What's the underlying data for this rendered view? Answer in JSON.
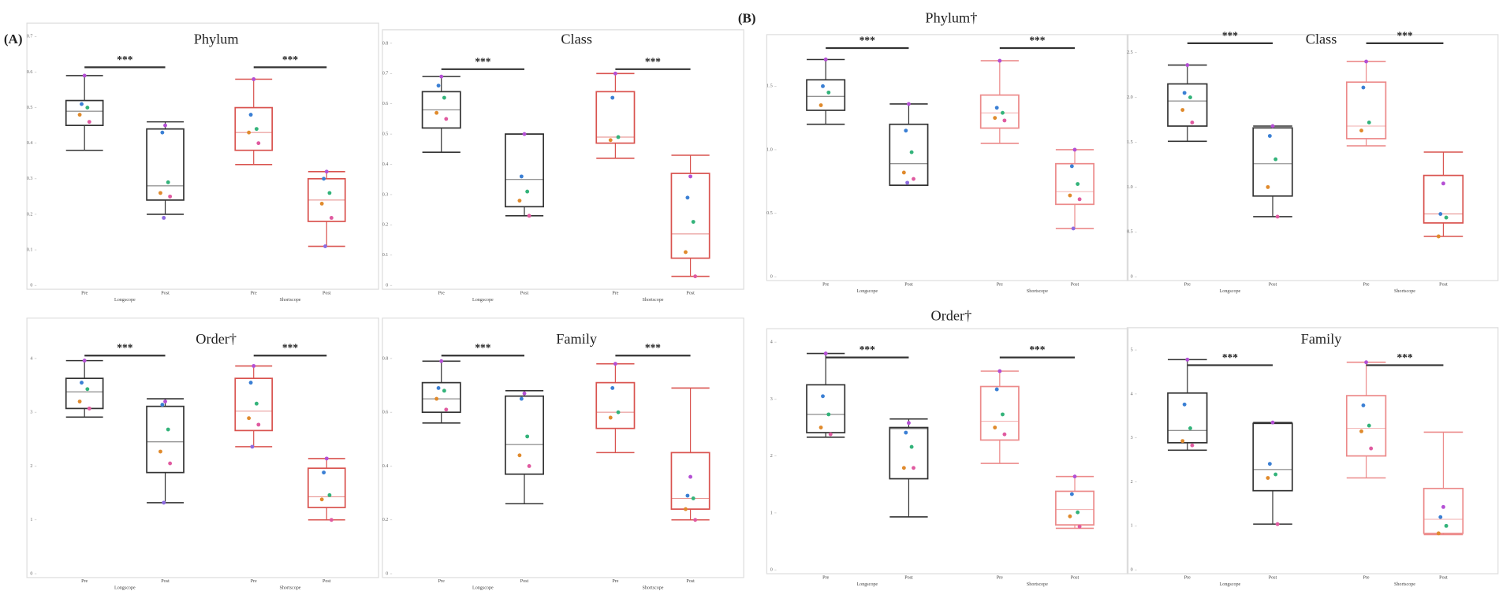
{
  "panels": [
    "(A)",
    "(B)"
  ],
  "point_colors": [
    "#b44fd4",
    "#3a7fd4",
    "#33b37a",
    "#e08a2c",
    "#e05aa0",
    "#8d6be0"
  ],
  "chart_data": [
    {
      "type": "box",
      "title": "Phylum",
      "categories": [
        "Pre",
        "Post",
        "Pre",
        "Post"
      ],
      "groups": [
        "Longscope",
        "Shortscope"
      ],
      "significance": [
        "***",
        "***"
      ],
      "ylim": [
        0,
        0.7
      ],
      "yticks": [
        0,
        0.1,
        0.2,
        0.3,
        0.4,
        0.5,
        0.6,
        0.7
      ],
      "boxes": [
        {
          "color": "#333333",
          "whisker_low": 0.38,
          "q1": 0.45,
          "median": 0.49,
          "q3": 0.52,
          "whisker_high": 0.59,
          "points": [
            0.59,
            0.51,
            0.5,
            0.48,
            0.46
          ]
        },
        {
          "color": "#333333",
          "whisker_low": 0.2,
          "q1": 0.24,
          "median": 0.28,
          "q3": 0.44,
          "whisker_high": 0.46,
          "points": [
            0.45,
            0.43,
            0.29,
            0.26,
            0.25,
            0.19
          ]
        },
        {
          "color": "#d9534f",
          "whisker_low": 0.34,
          "q1": 0.38,
          "median": 0.43,
          "q3": 0.5,
          "whisker_high": 0.58,
          "points": [
            0.58,
            0.48,
            0.44,
            0.43,
            0.4
          ]
        },
        {
          "color": "#d9534f",
          "whisker_low": 0.11,
          "q1": 0.18,
          "median": 0.24,
          "q3": 0.3,
          "whisker_high": 0.32,
          "points": [
            0.32,
            0.3,
            0.26,
            0.23,
            0.19,
            0.11
          ]
        }
      ]
    },
    {
      "type": "box",
      "title": "Class",
      "categories": [
        "Pre",
        "Post",
        "Pre",
        "Post"
      ],
      "groups": [
        "Longscope",
        "Shortscope"
      ],
      "significance": [
        "***",
        "***"
      ],
      "ylim": [
        0,
        0.8
      ],
      "yticks": [
        0,
        0.1,
        0.2,
        0.3,
        0.4,
        0.5,
        0.6,
        0.7,
        0.8
      ],
      "boxes": [
        {
          "color": "#333333",
          "whisker_low": 0.44,
          "q1": 0.52,
          "median": 0.58,
          "q3": 0.64,
          "whisker_high": 0.69,
          "points": [
            0.69,
            0.66,
            0.62,
            0.57,
            0.55
          ]
        },
        {
          "color": "#333333",
          "whisker_low": 0.23,
          "q1": 0.26,
          "median": 0.35,
          "q3": 0.5,
          "whisker_high": 0.5,
          "points": [
            0.5,
            0.36,
            0.31,
            0.28,
            0.23
          ]
        },
        {
          "color": "#d9534f",
          "whisker_low": 0.42,
          "q1": 0.47,
          "median": 0.49,
          "q3": 0.64,
          "whisker_high": 0.7,
          "points": [
            0.7,
            0.62,
            0.49,
            0.48
          ]
        },
        {
          "color": "#d9534f",
          "whisker_low": 0.03,
          "q1": 0.09,
          "median": 0.17,
          "q3": 0.37,
          "whisker_high": 0.43,
          "points": [
            0.36,
            0.29,
            0.21,
            0.11,
            0.03
          ]
        }
      ]
    },
    {
      "type": "box",
      "title": "Order†",
      "categories": [
        "Pre",
        "Post",
        "Pre",
        "Post"
      ],
      "groups": [
        "Longscope",
        "Shortscope"
      ],
      "significance": [
        "***",
        "***"
      ],
      "ylim": [
        0,
        4.5
      ],
      "yticks": [
        0,
        1,
        2,
        3,
        4
      ],
      "boxes": [
        {
          "color": "#333333",
          "whisker_low": 2.91,
          "q1": 3.07,
          "median": 3.38,
          "q3": 3.63,
          "whisker_high": 3.96,
          "points": [
            3.96,
            3.55,
            3.43,
            3.2,
            3.07
          ]
        },
        {
          "color": "#333333",
          "whisker_low": 1.32,
          "q1": 1.88,
          "median": 2.45,
          "q3": 3.11,
          "whisker_high": 3.25,
          "points": [
            3.2,
            3.14,
            2.68,
            2.27,
            2.05,
            1.32
          ]
        },
        {
          "color": "#d9534f",
          "whisker_low": 2.36,
          "q1": 2.66,
          "median": 3.02,
          "q3": 3.63,
          "whisker_high": 3.86,
          "points": [
            3.86,
            3.55,
            3.16,
            2.89,
            2.77,
            2.36
          ]
        },
        {
          "color": "#d9534f",
          "whisker_low": 1.0,
          "q1": 1.23,
          "median": 1.43,
          "q3": 1.96,
          "whisker_high": 2.14,
          "points": [
            2.14,
            1.88,
            1.46,
            1.38,
            1.0
          ]
        }
      ]
    },
    {
      "type": "box",
      "title": "Family",
      "categories": [
        "Pre",
        "Post",
        "Pre",
        "Post"
      ],
      "groups": [
        "Longscope",
        "Shortscope"
      ],
      "significance": [
        "***",
        "***"
      ],
      "ylim": [
        0,
        0.9
      ],
      "yticks": [
        0,
        0.2,
        0.4,
        0.6,
        0.8
      ],
      "boxes": [
        {
          "color": "#333333",
          "whisker_low": 0.56,
          "q1": 0.6,
          "median": 0.65,
          "q3": 0.71,
          "whisker_high": 0.79,
          "points": [
            0.79,
            0.69,
            0.68,
            0.65,
            0.61
          ]
        },
        {
          "color": "#333333",
          "whisker_low": 0.26,
          "q1": 0.37,
          "median": 0.48,
          "q3": 0.66,
          "whisker_high": 0.68,
          "points": [
            0.67,
            0.65,
            0.51,
            0.44,
            0.4
          ]
        },
        {
          "color": "#d9534f",
          "whisker_low": 0.45,
          "q1": 0.54,
          "median": 0.6,
          "q3": 0.71,
          "whisker_high": 0.78,
          "points": [
            0.78,
            0.69,
            0.6,
            0.58
          ]
        },
        {
          "color": "#d9534f",
          "whisker_low": 0.2,
          "q1": 0.24,
          "median": 0.28,
          "q3": 0.45,
          "whisker_high": 0.69,
          "points": [
            0.36,
            0.29,
            0.28,
            0.24,
            0.2
          ]
        }
      ]
    },
    {
      "type": "box",
      "title": "Phylum†",
      "categories": [
        "Pre",
        "Post",
        "Pre",
        "Post"
      ],
      "groups": [
        "Longscope",
        "Shortscope"
      ],
      "significance": [
        "***",
        "***"
      ],
      "ylim": [
        0,
        1.8
      ],
      "yticks": [
        0,
        0.5,
        {
          "value": 1,
          "label": "1.0"
        },
        1.5
      ],
      "boxes": [
        {
          "color": "#333333",
          "whisker_low": 1.2,
          "q1": 1.31,
          "median": 1.42,
          "q3": 1.55,
          "whisker_high": 1.71,
          "points": [
            1.71,
            1.5,
            1.45,
            1.35
          ]
        },
        {
          "color": "#333333",
          "whisker_low": 0.72,
          "q1": 0.72,
          "median": 0.89,
          "q3": 1.2,
          "whisker_high": 1.36,
          "points": [
            1.36,
            1.15,
            0.98,
            0.82,
            0.77,
            0.74
          ]
        },
        {
          "color": "#ec8a8a",
          "whisker_low": 1.05,
          "q1": 1.17,
          "median": 1.29,
          "q3": 1.43,
          "whisker_high": 1.7,
          "points": [
            1.7,
            1.33,
            1.29,
            1.25,
            1.23
          ]
        },
        {
          "color": "#ec8a8a",
          "whisker_low": 0.38,
          "q1": 0.57,
          "median": 0.67,
          "q3": 0.89,
          "whisker_high": 1.0,
          "points": [
            1.0,
            0.87,
            0.73,
            0.64,
            0.61,
            0.38
          ]
        }
      ]
    },
    {
      "type": "box",
      "title": "Class",
      "categories": [
        "Pre",
        "Post",
        "Pre",
        "Post"
      ],
      "groups": [
        "Longscope",
        "Shortscope"
      ],
      "significance": [
        "***",
        "***"
      ],
      "ylim": [
        0,
        2.55
      ],
      "yticks": [
        0,
        0.5,
        {
          "value": 1,
          "label": "1.0"
        },
        1.5,
        {
          "value": 2,
          "label": "2.0"
        },
        2.5
      ],
      "boxes": [
        {
          "color": "#333333",
          "whisker_low": 1.51,
          "q1": 1.68,
          "median": 1.96,
          "q3": 2.15,
          "whisker_high": 2.36,
          "points": [
            2.36,
            2.05,
            2.0,
            1.86,
            1.72
          ]
        },
        {
          "color": "#333333",
          "whisker_low": 0.67,
          "q1": 0.9,
          "median": 1.26,
          "q3": 1.66,
          "whisker_high": 1.68,
          "points": [
            1.68,
            1.57,
            1.31,
            1.0,
            0.67
          ]
        },
        {
          "color": "#ec8a8a",
          "whisker_low": 1.46,
          "q1": 1.54,
          "median": 1.68,
          "q3": 2.17,
          "whisker_high": 2.4,
          "points": [
            2.4,
            2.11,
            1.72,
            1.63
          ]
        },
        {
          "color": "#d9534f",
          "whisker_low": 0.45,
          "q1": 0.6,
          "median": 0.7,
          "q3": 1.13,
          "whisker_high": 1.39,
          "points": [
            1.04,
            0.7,
            0.66,
            0.45
          ]
        }
      ]
    },
    {
      "type": "box",
      "title": "Order†",
      "categories": [
        "Pre",
        "Post",
        "Pre",
        "Post"
      ],
      "groups": [
        "Longscope",
        "Shortscope"
      ],
      "significance": [
        "***",
        "***"
      ],
      "ylim": [
        0,
        4
      ],
      "yticks": [
        0,
        1,
        2,
        3,
        4
      ],
      "boxes": [
        {
          "color": "#333333",
          "whisker_low": 2.33,
          "q1": 2.41,
          "median": 2.73,
          "q3": 3.25,
          "whisker_high": 3.8,
          "points": [
            3.8,
            3.05,
            2.73,
            2.5,
            2.38
          ]
        },
        {
          "color": "#333333",
          "whisker_low": 0.93,
          "q1": 1.6,
          "median": 2.48,
          "q3": 2.5,
          "whisker_high": 2.65,
          "points": [
            2.58,
            2.41,
            2.16,
            1.79,
            1.79
          ]
        },
        {
          "color": "#ec8a8a",
          "whisker_low": 1.87,
          "q1": 2.28,
          "median": 2.61,
          "q3": 3.22,
          "whisker_high": 3.49,
          "points": [
            3.49,
            3.17,
            2.73,
            2.5,
            2.38
          ]
        },
        {
          "color": "#ec8a8a",
          "whisker_low": 0.73,
          "q1": 0.79,
          "median": 1.06,
          "q3": 1.38,
          "whisker_high": 1.64,
          "points": [
            1.64,
            1.33,
            1.01,
            0.94,
            0.76
          ]
        }
      ]
    },
    {
      "type": "box",
      "title": "Family",
      "categories": [
        "Pre",
        "Post",
        "Pre",
        "Post"
      ],
      "groups": [
        "Longscope",
        "Shortscope"
      ],
      "significance": [
        "***",
        "***"
      ],
      "ylim": [
        0,
        5.2
      ],
      "yticks": [
        0,
        1,
        2,
        3,
        4,
        5
      ],
      "boxes": [
        {
          "color": "#333333",
          "whisker_low": 2.72,
          "q1": 2.89,
          "median": 3.17,
          "q3": 4.02,
          "whisker_high": 4.78,
          "points": [
            4.78,
            3.76,
            3.22,
            2.93,
            2.83
          ]
        },
        {
          "color": "#333333",
          "whisker_low": 1.04,
          "q1": 1.8,
          "median": 2.28,
          "q3": 3.33,
          "whisker_high": 3.35,
          "points": [
            3.35,
            2.41,
            2.17,
            2.09,
            1.04
          ]
        },
        {
          "color": "#ec8a8a",
          "whisker_low": 2.09,
          "q1": 2.59,
          "median": 3.22,
          "q3": 3.96,
          "whisker_high": 4.72,
          "points": [
            4.72,
            3.74,
            3.28,
            3.15,
            2.76
          ]
        },
        {
          "color": "#ec8a8a",
          "whisker_low": 0.8,
          "q1": 0.83,
          "median": 1.15,
          "q3": 1.85,
          "whisker_high": 3.13,
          "points": [
            1.43,
            1.2,
            1.0,
            0.83
          ]
        }
      ]
    }
  ]
}
